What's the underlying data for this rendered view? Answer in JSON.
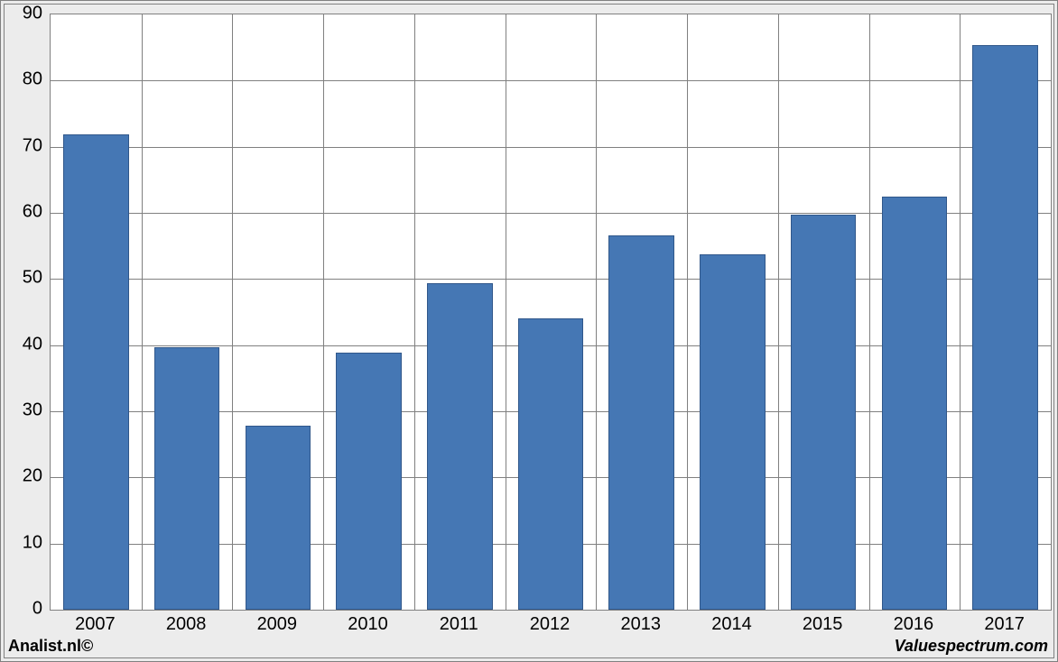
{
  "chart": {
    "type": "bar",
    "categories": [
      "2007",
      "2008",
      "2009",
      "2010",
      "2011",
      "2012",
      "2013",
      "2014",
      "2015",
      "2016",
      "2017"
    ],
    "values": [
      71.8,
      39.7,
      27.8,
      38.9,
      49.3,
      44.0,
      56.6,
      53.7,
      59.7,
      62.4,
      85.3
    ],
    "bar_color": "#4577b4",
    "bar_border_color": "#30578a",
    "background_color": "#ffffff",
    "frame_background": "#ececec",
    "grid_color": "#808080",
    "ylim": [
      0,
      90
    ],
    "ytick_step": 10,
    "yticks": [
      "0",
      "10",
      "20",
      "30",
      "40",
      "50",
      "60",
      "70",
      "80",
      "90"
    ],
    "bar_width_ratio": 0.72,
    "axis_fontsize": 20,
    "footer_fontsize": 18
  },
  "footer": {
    "left": "Analist.nl©",
    "right": "Valuespectrum.com"
  }
}
